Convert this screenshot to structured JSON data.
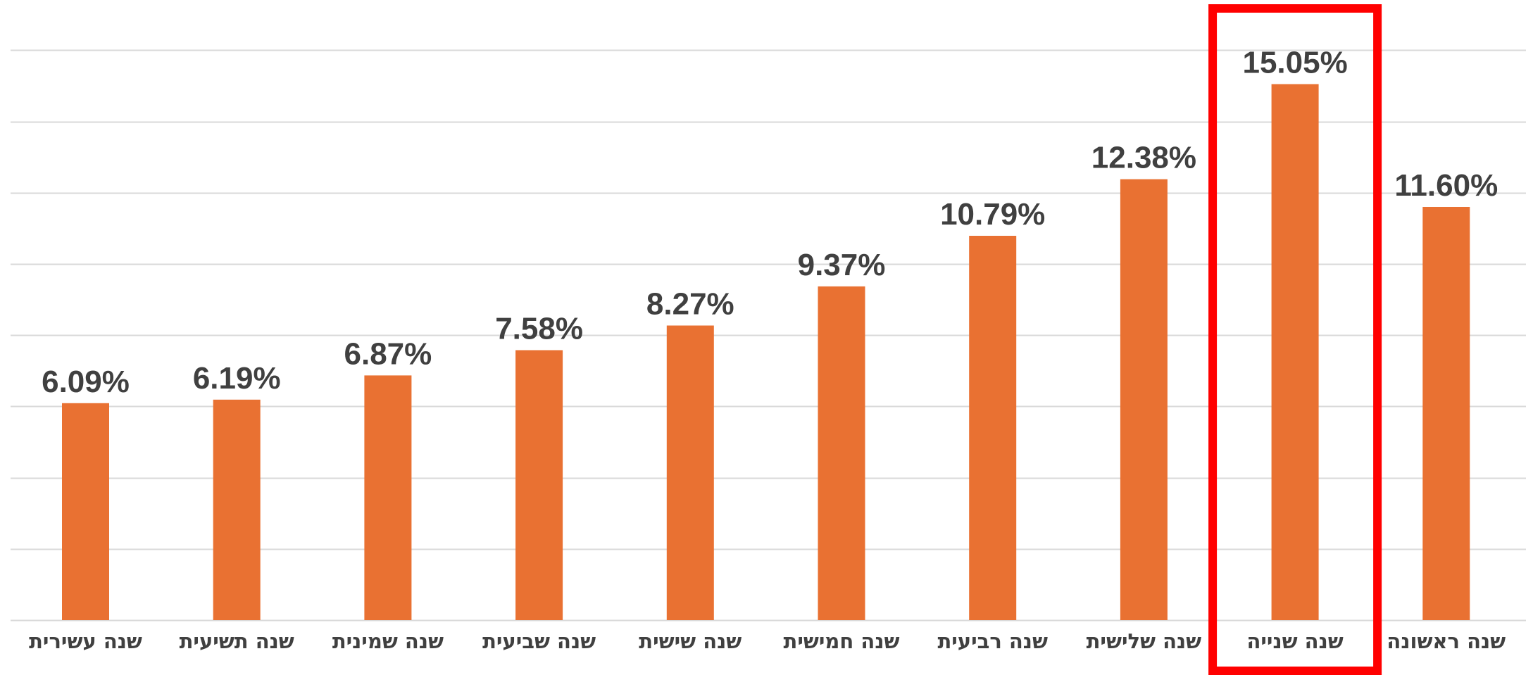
{
  "chart_data": {
    "type": "bar",
    "categories": [
      "שנה עשירית",
      "שנה תשיעית",
      "שנה שמינית",
      "שנה שביעית",
      "שנה שישית",
      "שנה חמישית",
      "שנה רביעית",
      "שנה שלישית",
      "שנה שנייה",
      "שנה ראשונה"
    ],
    "values": [
      6.09,
      6.19,
      6.87,
      7.58,
      8.27,
      9.37,
      10.79,
      12.38,
      15.05,
      11.6
    ],
    "data_labels": [
      "6.09%",
      "6.19%",
      "6.87%",
      "7.58%",
      "8.27%",
      "9.37%",
      "10.79%",
      "12.38%",
      "15.05%",
      "11.60%"
    ],
    "title": "",
    "xlabel": "",
    "ylabel": "",
    "ylim": [
      0,
      16
    ],
    "ytick_step": 2,
    "grid": true,
    "legend": "none",
    "highlighted_category": "שנה שנייה",
    "colors": {
      "bar": "#e97132",
      "highlight": "#ff0000",
      "grid": "#d9d9d9",
      "text": "#404040"
    }
  }
}
